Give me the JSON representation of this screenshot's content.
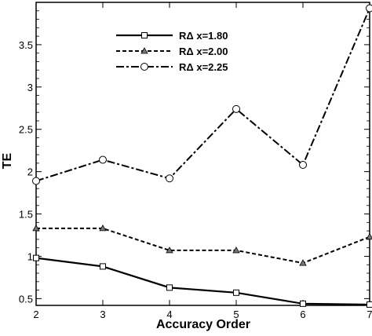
{
  "chart_data": {
    "type": "line",
    "xlabel": "Accuracy Order",
    "ylabel": "TE",
    "xlim": [
      2,
      7
    ],
    "ylim": [
      0.42,
      4.0
    ],
    "x_ticks": [
      2,
      3,
      4,
      5,
      6,
      7
    ],
    "x_tick_labels": [
      "2",
      "3",
      "4",
      "5",
      "6",
      "7"
    ],
    "y_ticks": [
      0.5,
      1,
      1.5,
      2,
      2.5,
      3,
      3.5
    ],
    "y_tick_labels": [
      "0.5",
      "1",
      "1.5",
      "2",
      "2.5",
      "3",
      "3.5"
    ],
    "grid": false,
    "legend_position": "top-center",
    "x": [
      2,
      3,
      4,
      5,
      6,
      7
    ],
    "series": [
      {
        "name": "RΔ x=1.80",
        "values": [
          0.98,
          0.88,
          0.63,
          0.57,
          0.44,
          0.43
        ],
        "marker": "square",
        "line_style": "solid"
      },
      {
        "name": "RΔ x=2.00",
        "values": [
          1.33,
          1.33,
          1.07,
          1.07,
          0.92,
          1.23
        ],
        "marker": "triangle",
        "line_style": "dashed"
      },
      {
        "name": "RΔ x=2.25",
        "values": [
          1.89,
          2.14,
          1.92,
          2.74,
          2.08,
          3.93
        ],
        "marker": "circle",
        "line_style": "dash-dot"
      }
    ]
  }
}
